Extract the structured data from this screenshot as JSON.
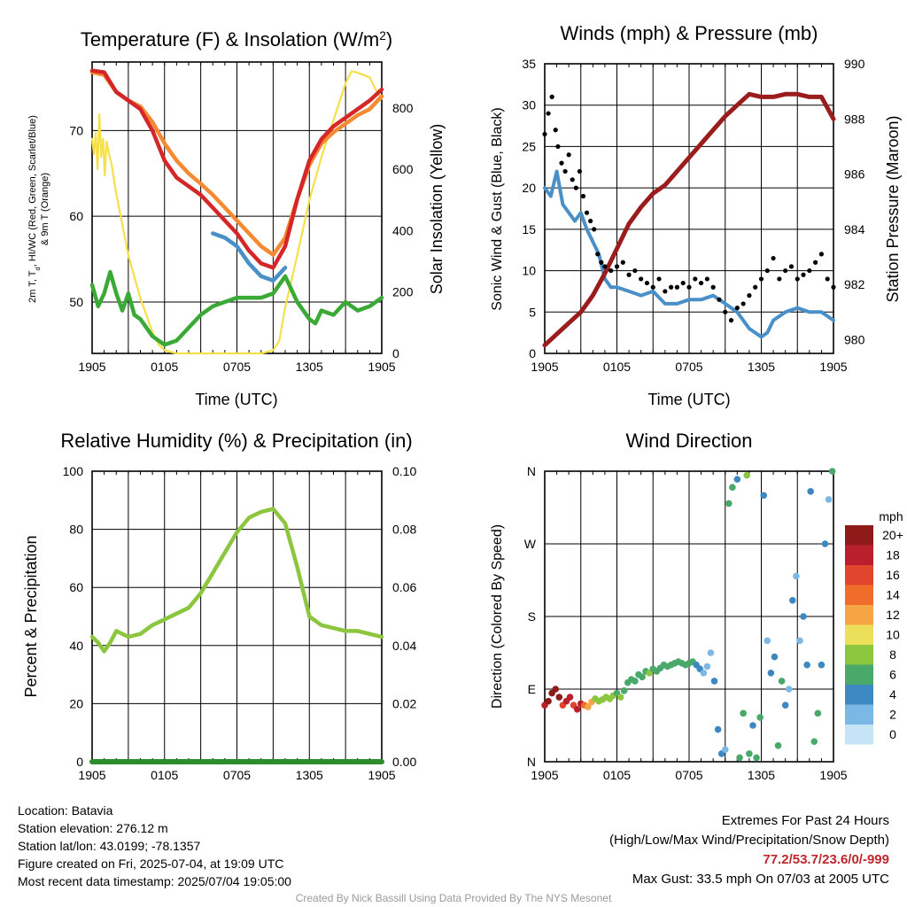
{
  "palette": {
    "red": "#d62728",
    "orange": "#f58a33",
    "blue": "#4a90c8",
    "green": "#3aa935",
    "yellow": "#f5e04a",
    "maroon": "#9b1c1c",
    "humidity": "#8cc63f",
    "precip": "#2e8b2e",
    "black": "#000000"
  },
  "chart_data": [
    {
      "id": "temp",
      "type": "line",
      "title": "Temperature (F) & Insolation (W/m",
      "title_sup": "2",
      "title_end": ")",
      "xlabel": "Time (UTC)",
      "ylabel_left_1": "2m T, T",
      "ylabel_left_1_sub": "d",
      "ylabel_left_1_end": ", HI/WC (Red, Green, Scarlet/Blue)",
      "ylabel_left_2": "& 9m T (Orange)",
      "ylabel_right": "Solar Insolation (Yellow)",
      "x_ticks": [
        "1905",
        "0105",
        "0705",
        "1305",
        "1905"
      ],
      "ylim": [
        44,
        78
      ],
      "y_ticks": [
        "50",
        "60",
        "70"
      ],
      "y_tick_values": [
        50,
        60,
        70
      ],
      "y2lim": [
        0,
        950
      ],
      "y2_ticks": [
        "0",
        "200",
        "400",
        "600",
        "800"
      ],
      "y2_tick_values": [
        0,
        200,
        400,
        600,
        800
      ],
      "series": [
        {
          "color": "orange",
          "axis": "left",
          "x": [
            0,
            1,
            2,
            3,
            4,
            5,
            6,
            7,
            8,
            9,
            10,
            11,
            12,
            13,
            14,
            15,
            16,
            17,
            18,
            19,
            20,
            21,
            22,
            23,
            24
          ],
          "values": [
            76.8,
            76.5,
            74.5,
            73.5,
            72.8,
            71.0,
            68.5,
            66.5,
            65.0,
            63.8,
            62.5,
            61.0,
            59.5,
            58.0,
            56.5,
            55.5,
            57.5,
            62.0,
            66.0,
            68.5,
            69.8,
            70.8,
            71.8,
            72.5,
            74.0
          ]
        },
        {
          "color": "red",
          "axis": "left",
          "x": [
            0,
            1,
            2,
            3,
            4,
            5,
            6,
            7,
            8,
            9,
            10,
            11,
            12,
            13,
            14,
            15,
            16,
            17,
            18,
            19,
            20,
            21,
            22,
            23,
            24
          ],
          "values": [
            77.0,
            76.8,
            74.5,
            73.5,
            72.5,
            70.0,
            66.5,
            64.5,
            63.5,
            62.5,
            61.0,
            59.5,
            58.0,
            56.0,
            54.5,
            54.0,
            56.5,
            62.0,
            66.5,
            69.0,
            70.5,
            71.5,
            72.5,
            73.5,
            74.8
          ]
        },
        {
          "color": "blue",
          "axis": "left",
          "x": [
            10,
            11,
            12,
            13,
            14,
            15,
            16
          ],
          "values": [
            58.0,
            57.5,
            56.5,
            54.5,
            53.0,
            52.5,
            54.0
          ]
        },
        {
          "color": "green",
          "axis": "left",
          "x": [
            0,
            0.5,
            1,
            1.5,
            2,
            2.5,
            3,
            3.5,
            4,
            5,
            6,
            7,
            8,
            9,
            10,
            11,
            12,
            13,
            14,
            15,
            16,
            17,
            18,
            18.5,
            19,
            20,
            21,
            22,
            23,
            24
          ],
          "values": [
            52,
            49.5,
            51,
            53.5,
            51,
            49,
            51,
            48.5,
            48,
            46,
            45,
            45.5,
            47,
            48.5,
            49.5,
            50,
            50.5,
            50.5,
            50.5,
            51,
            53,
            50,
            48,
            47.5,
            49,
            48.5,
            50,
            49,
            49.5,
            50.5
          ]
        },
        {
          "color": "yellow",
          "axis": "right",
          "x": [
            0,
            0.15,
            0.3,
            0.45,
            0.6,
            0.75,
            0.9,
            1.05,
            1.2,
            1.4,
            1.6,
            2,
            3,
            4,
            5,
            5.5,
            6,
            7,
            8,
            9,
            10,
            11,
            12,
            13,
            14,
            15,
            15.5,
            16,
            17,
            18,
            19,
            20,
            21,
            21.5,
            22,
            23,
            23.5,
            24
          ],
          "values": [
            700,
            650,
            720,
            600,
            780,
            640,
            700,
            580,
            690,
            650,
            620,
            520,
            320,
            180,
            70,
            30,
            10,
            0,
            0,
            0,
            0,
            0,
            0,
            0,
            0,
            10,
            40,
            150,
            320,
            500,
            640,
            760,
            880,
            920,
            915,
            900,
            860,
            830
          ]
        }
      ]
    },
    {
      "id": "wind",
      "type": "scatter",
      "title": "Winds (mph) & Pressure (mb)",
      "xlabel": "Time (UTC)",
      "ylabel_left": "Sonic Wind & Gust (Blue, Black)",
      "ylabel_right": "Station Pressure (Maroon)",
      "x_ticks": [
        "1905",
        "0105",
        "0705",
        "1305",
        "1905"
      ],
      "ylim": [
        0,
        35
      ],
      "y_ticks": [
        "0",
        "5",
        "10",
        "15",
        "20",
        "25",
        "30",
        "35"
      ],
      "y_tick_values": [
        0,
        5,
        10,
        15,
        20,
        25,
        30,
        35
      ],
      "y2lim": [
        979.5,
        990
      ],
      "y2_ticks": [
        "980",
        "982",
        "984",
        "986",
        "988",
        "990"
      ],
      "y2_tick_values": [
        980,
        982,
        984,
        986,
        988,
        990
      ],
      "wind": {
        "color": "blue",
        "x": [
          0,
          0.5,
          1,
          1.5,
          2,
          2.5,
          3,
          3.5,
          4,
          4.5,
          5,
          5.5,
          6,
          7,
          8,
          9,
          10,
          11,
          12,
          13,
          14,
          15,
          16,
          17,
          18,
          18.5,
          19,
          20,
          21,
          22,
          23,
          24
        ],
        "values": [
          20,
          19,
          22,
          18,
          17,
          16,
          17,
          15,
          13.5,
          12,
          9,
          8,
          8,
          7.5,
          7,
          7.5,
          6,
          6,
          6.5,
          6.5,
          7,
          6,
          5,
          3,
          2,
          2.5,
          4,
          5,
          5.5,
          5,
          5,
          4
        ]
      },
      "gust": {
        "color": "black",
        "x": [
          0,
          0.3,
          0.6,
          0.9,
          1.1,
          1.4,
          1.7,
          2.0,
          2.3,
          2.6,
          2.9,
          3.2,
          3.5,
          3.8,
          4.1,
          4.4,
          4.7,
          5.0,
          5.5,
          6,
          6.5,
          7,
          7.5,
          8,
          8.5,
          9,
          9.5,
          10,
          10.5,
          11,
          11.5,
          12,
          12.5,
          13,
          13.5,
          14,
          14.5,
          15,
          15.5,
          16,
          16.5,
          17,
          17.5,
          18,
          18.5,
          19,
          19.5,
          20,
          20.5,
          21,
          21.5,
          22,
          22.5,
          23,
          23.5,
          24
        ],
        "values": [
          26.5,
          29,
          31,
          27,
          25,
          23,
          22,
          24,
          21,
          20,
          22,
          19,
          17,
          16,
          15,
          12,
          11,
          10.5,
          10,
          10.5,
          11,
          9.5,
          10,
          9,
          8.5,
          8,
          9,
          7.5,
          8,
          8,
          8.5,
          8,
          9,
          8.5,
          9,
          8,
          6.5,
          5,
          4,
          5.5,
          6,
          7,
          8,
          9,
          10,
          11.5,
          9,
          10,
          10.5,
          9,
          9.5,
          10,
          11,
          12,
          9,
          8
        ]
      },
      "pressure": {
        "color": "maroon",
        "x": [
          0,
          1,
          2,
          3,
          4,
          5,
          6,
          7,
          8,
          9,
          10,
          11,
          12,
          13,
          14,
          15,
          16,
          17,
          18,
          19,
          20,
          21,
          22,
          23,
          24
        ],
        "values": [
          979.8,
          980.2,
          980.6,
          981.0,
          981.6,
          982.4,
          983.3,
          984.2,
          984.8,
          985.3,
          985.6,
          986.1,
          986.6,
          987.1,
          987.6,
          988.1,
          988.5,
          988.9,
          988.8,
          988.8,
          988.9,
          988.9,
          988.8,
          988.8,
          988.0
        ]
      }
    },
    {
      "id": "rh",
      "type": "line",
      "title": "Relative Humidity (%) & Precipitation (in)",
      "ylabel_left": "Percent & Precipitation",
      "x_ticks": [
        "1905",
        "0105",
        "0705",
        "1305",
        "1905"
      ],
      "ylim": [
        0,
        100
      ],
      "y_ticks": [
        "0",
        "20",
        "40",
        "60",
        "80",
        "100"
      ],
      "y_tick_values": [
        0,
        20,
        40,
        60,
        80,
        100
      ],
      "y2lim": [
        0,
        0.1
      ],
      "y2_ticks": [
        "0.00",
        "0.02",
        "0.04",
        "0.06",
        "0.08",
        "0.10"
      ],
      "y2_tick_values": [
        0,
        0.02,
        0.04,
        0.06,
        0.08,
        0.1
      ],
      "humidity": {
        "color": "humidity",
        "x": [
          0,
          0.5,
          1,
          1.5,
          2,
          3,
          4,
          5,
          6,
          7,
          8,
          9,
          10,
          11,
          12,
          13,
          14,
          15,
          16,
          17,
          18,
          19,
          20,
          21,
          22,
          23,
          24
        ],
        "values": [
          43,
          41,
          38,
          41,
          45,
          43,
          44,
          47,
          49,
          51,
          53,
          58,
          65,
          72,
          79,
          84,
          86,
          87,
          82,
          67,
          50,
          47,
          46,
          45,
          45,
          44,
          43
        ]
      },
      "precip": {
        "color": "precip",
        "x": [
          0,
          24
        ],
        "values": [
          0,
          0
        ]
      }
    },
    {
      "id": "dir",
      "type": "scatter",
      "title": "Wind Direction",
      "ylabel_left": "Direction (Colored By Speed)",
      "x_ticks": [
        "1905",
        "0105",
        "0705",
        "1305",
        "1905"
      ],
      "ylim": [
        0,
        360
      ],
      "y_ticks": [
        "N",
        "E",
        "S",
        "W",
        "N"
      ],
      "y_tick_values": [
        0,
        90,
        180,
        270,
        360
      ],
      "legend_title": "mph",
      "legend_labels": [
        "20+",
        "18",
        "16",
        "14",
        "12",
        "10",
        "8",
        "6",
        "4",
        "2",
        "0"
      ],
      "legend_colors": [
        "#8e1a1a",
        "#b9202b",
        "#e0452e",
        "#f06c2a",
        "#f6a545",
        "#ece05a",
        "#8cc63f",
        "#49a86a",
        "#3d88c3",
        "#7cb8e6",
        "#c5e5f7"
      ],
      "points": {
        "x": [
          0,
          0.3,
          0.6,
          0.9,
          1.2,
          1.5,
          1.8,
          2.1,
          2.4,
          2.7,
          3.0,
          3.3,
          3.6,
          3.9,
          4.2,
          4.5,
          4.8,
          5.1,
          5.4,
          5.7,
          6.0,
          6.3,
          6.6,
          6.9,
          7.2,
          7.5,
          7.8,
          8.1,
          8.4,
          8.7,
          9.0,
          9.3,
          9.6,
          9.9,
          10.2,
          10.5,
          10.8,
          11.1,
          11.4,
          11.7,
          12.0,
          12.3,
          12.6,
          12.9,
          13.2,
          13.5,
          13.8,
          14.1,
          14.4,
          14.7,
          15.0,
          15.3,
          15.6,
          16.0,
          16.2,
          16.5,
          16.8,
          17.0,
          17.3,
          17.6,
          17.9,
          18.2,
          18.5,
          18.8,
          19.1,
          19.4,
          19.7,
          20.0,
          20.3,
          20.6,
          20.9,
          21.2,
          21.5,
          21.8,
          22.1,
          22.4,
          22.7,
          23.0,
          23.3,
          23.6,
          23.9
        ],
        "dir": [
          290,
          285,
          275,
          270,
          280,
          290,
          285,
          280,
          290,
          295,
          288,
          290,
          292,
          286,
          282,
          285,
          283,
          280,
          282,
          278,
          275,
          280,
          272,
          262,
          258,
          260,
          252,
          255,
          248,
          250,
          245,
          248,
          244,
          240,
          242,
          240,
          238,
          236,
          238,
          240,
          238,
          236,
          240,
          245,
          250,
          242,
          225,
          260,
          320,
          350,
          345,
          40,
          20,
          10,
          355,
          300,
          5,
          350,
          315,
          355,
          305,
          30,
          210,
          250,
          230,
          340,
          260,
          290,
          270,
          160,
          130,
          210,
          180,
          240,
          25,
          335,
          300,
          240,
          90,
          35,
          0
        ],
        "speed": [
          18,
          20,
          20,
          19,
          20,
          16,
          18,
          18,
          16,
          17,
          18,
          14,
          12,
          11,
          8,
          8,
          8,
          8,
          8,
          7,
          6,
          7,
          6,
          6,
          5,
          6,
          6,
          5,
          6,
          7,
          6,
          5,
          6,
          6,
          6,
          5,
          6,
          5,
          6,
          5,
          6,
          5,
          4,
          3,
          2,
          1,
          1,
          3,
          4,
          3,
          2,
          5,
          6,
          4,
          6,
          5,
          8,
          6,
          4,
          6,
          5,
          4,
          2,
          3,
          4,
          5,
          6,
          4,
          2,
          3,
          2,
          2,
          4,
          3,
          4,
          5,
          6,
          4,
          3,
          2,
          6
        ]
      }
    }
  ],
  "footer": {
    "location": "Location: Batavia",
    "elevation": "Station elevation: 276.12 m",
    "latlon": "Station lat/lon: 43.0199; -78.1357",
    "created": "Figure created on Fri, 2025-07-04, at 19:09 UTC",
    "recent": "Most recent data timestamp: 2025/07/04 19:05:00",
    "extremes_title": "Extremes For Past 24 Hours",
    "extremes_fields": "(High/Low/Max Wind/Precipitation/Snow Depth)",
    "extremes_values": "77.2/53.7/23.6/0/-999",
    "max_gust": "Max Gust: 33.5 mph On 07/03 at 2005 UTC",
    "credit": "Created By Nick Bassill Using Data Provided By The NYS Mesonet"
  }
}
